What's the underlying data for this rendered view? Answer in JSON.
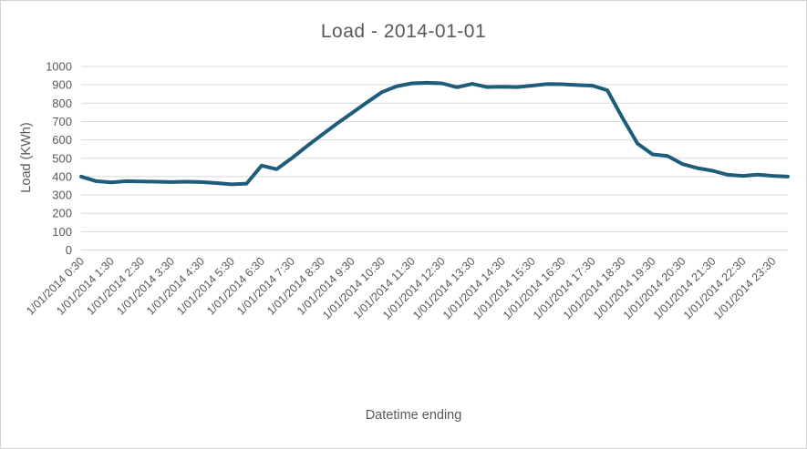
{
  "chart_data": {
    "type": "line",
    "title": "Load - 2014-01-01",
    "xlabel": "Datetime ending",
    "ylabel": "Load (KWh)",
    "ylim": [
      0,
      1000
    ],
    "ytick_step": 100,
    "grid": "horizontal-only",
    "legend": false,
    "x_interval_minutes": 30,
    "x_tick_labels": [
      "1/01/2014 0:30",
      "1/01/2014 1:30",
      "1/01/2014 2:30",
      "1/01/2014 3:30",
      "1/01/2014 4:30",
      "1/01/2014 5:30",
      "1/01/2014 6:30",
      "1/01/2014 7:30",
      "1/01/2014 8:30",
      "1/01/2014 9:30",
      "1/01/2014 10:30",
      "1/01/2014 11:30",
      "1/01/2014 12:30",
      "1/01/2014 13:30",
      "1/01/2014 14:30",
      "1/01/2014 15:30",
      "1/01/2014 16:30",
      "1/01/2014 17:30",
      "1/01/2014 18:30",
      "1/01/2014 19:30",
      "1/01/2014 20:30",
      "1/01/2014 21:30",
      "1/01/2014 22:30",
      "1/01/2014 23:30"
    ],
    "series": [
      {
        "name": "Load",
        "color": "#1e5c7c",
        "values": [
          400,
          375,
          368,
          375,
          373,
          372,
          370,
          372,
          370,
          365,
          358,
          362,
          460,
          440,
          500,
          565,
          627,
          688,
          746,
          804,
          860,
          893,
          908,
          911,
          908,
          887,
          905,
          888,
          890,
          888,
          896,
          904,
          903,
          899,
          896,
          870,
          720,
          580,
          521,
          512,
          468,
          446,
          432,
          410,
          404,
          411,
          404,
          400
        ]
      }
    ],
    "colors": {
      "text": "#595959",
      "gridline": "#d9d9d9",
      "figure_border": "#d2d2d2",
      "background": "#ffffff"
    }
  }
}
